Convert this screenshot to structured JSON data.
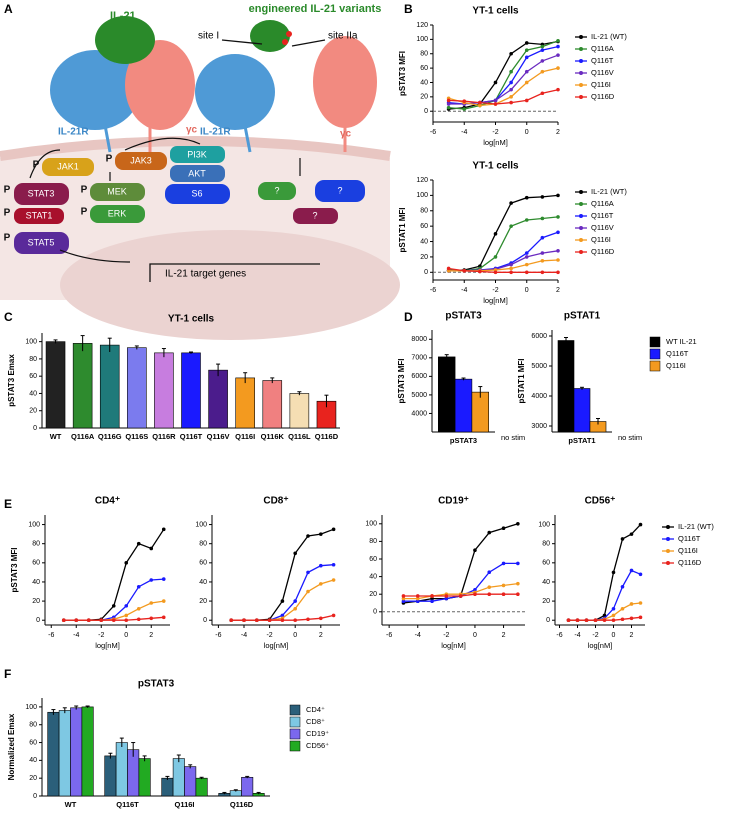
{
  "panel_labels": [
    "A",
    "B",
    "C",
    "D",
    "E",
    "F"
  ],
  "diagram": {
    "ligand": "IL-21",
    "variants": "engineered IL-21 variants",
    "site_1": "site I",
    "site_2": "site IIa",
    "receptor": [
      "IL-21R",
      "IL-21R"
    ],
    "gamma_c": [
      "γc",
      "γc"
    ],
    "kinases": [
      "JAK1",
      "JAK3",
      "PI3K",
      "AKT",
      "S6"
    ],
    "stats": [
      "STAT3",
      "STAT1",
      "STAT5"
    ],
    "mapk": [
      "MEK",
      "ERK"
    ],
    "unknown": [
      "?",
      "?",
      "?"
    ],
    "phospho": [
      "P",
      "P",
      "P",
      "P",
      "P",
      "P",
      "P"
    ],
    "target": "IL-21 target genes"
  },
  "chart_data": [
    {
      "type": "line",
      "title": "YT-1 cells",
      "y_label": "pSTAT3 MFI",
      "x_label": "log[nM]",
      "x": [
        -5,
        -4,
        -3,
        -2,
        -1,
        0,
        1,
        2
      ],
      "xlim": [
        -6,
        2
      ],
      "xticks": [
        -6,
        -4,
        -2,
        0,
        2
      ],
      "ylim": [
        -15,
        120
      ],
      "yticks": [
        0,
        20,
        40,
        60,
        80,
        100,
        120
      ],
      "zero_line": true,
      "legend": "right",
      "series": [
        {
          "name": "IL-21 (WT)",
          "color": "#000000",
          "values": [
            3,
            5,
            10,
            40,
            80,
            95,
            93,
            97
          ]
        },
        {
          "name": "Q116A",
          "color": "#2e8b2e",
          "values": [
            5,
            3,
            8,
            15,
            55,
            85,
            90,
            98
          ]
        },
        {
          "name": "Q116T",
          "color": "#1a1aff",
          "values": [
            12,
            10,
            12,
            15,
            40,
            75,
            85,
            90
          ]
        },
        {
          "name": "Q116V",
          "color": "#6a2bc0",
          "values": [
            10,
            10,
            12,
            15,
            30,
            55,
            70,
            78
          ]
        },
        {
          "name": "Q116I",
          "color": "#f39a1f",
          "values": [
            18,
            12,
            8,
            10,
            20,
            40,
            55,
            60
          ]
        },
        {
          "name": "Q116D",
          "color": "#e8231e",
          "values": [
            15,
            14,
            12,
            10,
            12,
            15,
            25,
            30
          ]
        }
      ]
    },
    {
      "type": "line",
      "title": "YT-1 cells",
      "y_label": "pSTAT1 MFI",
      "x_label": "log[nM]",
      "x": [
        -5,
        -4,
        -3,
        -2,
        -1,
        0,
        1,
        2
      ],
      "xlim": [
        -6,
        2
      ],
      "xticks": [
        -6,
        -4,
        -2,
        0,
        2
      ],
      "ylim": [
        -10,
        120
      ],
      "yticks": [
        0,
        20,
        40,
        60,
        80,
        100,
        120
      ],
      "zero_line": true,
      "legend": "right",
      "series": [
        {
          "name": "IL-21 (WT)",
          "color": "#000000",
          "values": [
            2,
            3,
            8,
            50,
            90,
            97,
            98,
            100
          ]
        },
        {
          "name": "Q116A",
          "color": "#2e8b2e",
          "values": [
            3,
            2,
            5,
            20,
            60,
            68,
            70,
            72
          ]
        },
        {
          "name": "Q116T",
          "color": "#1a1aff",
          "values": [
            2,
            2,
            3,
            5,
            12,
            25,
            45,
            52
          ]
        },
        {
          "name": "Q116V",
          "color": "#6a2bc0",
          "values": [
            2,
            2,
            3,
            4,
            10,
            20,
            25,
            28
          ]
        },
        {
          "name": "Q116I",
          "color": "#f39a1f",
          "values": [
            2,
            2,
            2,
            3,
            5,
            10,
            15,
            16
          ]
        },
        {
          "name": "Q116D",
          "color": "#e8231e",
          "values": [
            5,
            2,
            1,
            0,
            0,
            0,
            0,
            0
          ]
        }
      ]
    },
    {
      "type": "bar",
      "title": "YT-1 cells",
      "y_label": "pSTAT3 Emax",
      "categories": [
        "WT",
        "Q116A",
        "Q116G",
        "Q116S",
        "Q116R",
        "Q116T",
        "Q116V",
        "Q116I",
        "Q116K",
        "Q116L",
        "Q116D"
      ],
      "values": [
        100,
        98,
        96,
        93,
        87,
        87,
        67,
        58,
        55,
        40,
        31
      ],
      "errors": [
        2,
        9,
        8,
        2,
        5,
        1,
        7,
        6,
        3,
        2,
        7
      ],
      "colors": [
        "#222222",
        "#2e8b2e",
        "#1f7a7a",
        "#7b7bee",
        "#c77ddf",
        "#1a1aff",
        "#4b1c8c",
        "#f39a1f",
        "#f08080",
        "#f5deb3",
        "#e8231e"
      ],
      "ylim": [
        0,
        110
      ],
      "yticks": [
        0,
        20,
        40,
        60,
        80,
        100
      ]
    },
    {
      "type": "bar",
      "title": "pSTAT3",
      "y_label": "pSTAT3 MFI",
      "annotation": "no stim",
      "categories": [
        "pSTAT3"
      ],
      "ylim": [
        3000,
        8500
      ],
      "yticks": [
        4000,
        5000,
        6000,
        7000,
        8000
      ],
      "series": [
        {
          "color": "#000000",
          "values": [
            7050
          ],
          "errors": [
            120
          ]
        },
        {
          "color": "#1a1aff",
          "values": [
            5850
          ],
          "errors": [
            60
          ]
        },
        {
          "color": "#f39a1f",
          "values": [
            5150
          ],
          "errors": [
            300
          ]
        }
      ]
    },
    {
      "type": "bar",
      "title": "pSTAT1",
      "y_label": "pSTAT1 MFI",
      "annotation": "no stim",
      "legend": "right",
      "categories": [
        "pSTAT1"
      ],
      "ylim": [
        2800,
        6200
      ],
      "yticks": [
        3000,
        4000,
        5000,
        6000
      ],
      "series": [
        {
          "name": "WT IL-21",
          "color": "#000000",
          "values": [
            5850
          ],
          "errors": [
            100
          ]
        },
        {
          "name": "Q116T",
          "color": "#1a1aff",
          "values": [
            4250
          ],
          "errors": [
            40
          ]
        },
        {
          "name": "Q116I",
          "color": "#f39a1f",
          "values": [
            3150
          ],
          "errors": [
            100
          ]
        }
      ]
    },
    {
      "type": "line",
      "title": "CD4⁺",
      "y_label": "pSTAT3 MFI",
      "x_label": "log[nM]",
      "x": [
        -5,
        -4,
        -3,
        -2,
        -1,
        0,
        1,
        2,
        3
      ],
      "xlim": [
        -6.5,
        3.5
      ],
      "xticks": [
        -6,
        -4,
        -2,
        0,
        2
      ],
      "ylim": [
        -5,
        110
      ],
      "yticks": [
        0,
        20,
        40,
        60,
        80,
        100
      ],
      "series": [
        {
          "color": "#000000",
          "values": [
            0,
            0,
            0,
            1,
            15,
            60,
            80,
            75,
            95
          ]
        },
        {
          "color": "#1a1aff",
          "values": [
            0,
            0,
            0,
            0,
            3,
            15,
            35,
            42,
            43
          ]
        },
        {
          "color": "#f39a1f",
          "values": [
            0,
            0,
            0,
            0,
            1,
            5,
            12,
            18,
            20
          ]
        },
        {
          "color": "#e8231e",
          "values": [
            0,
            0,
            0,
            0,
            0,
            0,
            1,
            2,
            3
          ]
        }
      ]
    },
    {
      "type": "line",
      "title": "CD8⁺",
      "x_label": "log[nM]",
      "x": [
        -5,
        -4,
        -3,
        -2,
        -1,
        0,
        1,
        2,
        3
      ],
      "xlim": [
        -6.5,
        3.5
      ],
      "xticks": [
        -6,
        -4,
        -2,
        0,
        2
      ],
      "ylim": [
        -5,
        110
      ],
      "yticks": [
        0,
        20,
        40,
        60,
        80,
        100
      ],
      "series": [
        {
          "color": "#000000",
          "values": [
            0,
            0,
            0,
            1,
            20,
            70,
            88,
            90,
            95
          ]
        },
        {
          "color": "#1a1aff",
          "values": [
            0,
            0,
            0,
            0,
            5,
            20,
            50,
            57,
            58
          ]
        },
        {
          "color": "#f39a1f",
          "values": [
            0,
            0,
            0,
            0,
            2,
            12,
            30,
            38,
            42
          ]
        },
        {
          "color": "#e8231e",
          "values": [
            0,
            0,
            0,
            0,
            0,
            0,
            1,
            2,
            5
          ]
        }
      ]
    },
    {
      "type": "line",
      "title": "CD19⁺",
      "x_label": "log[nM]",
      "x": [
        -5,
        -4,
        -3,
        -2,
        -1,
        0,
        1,
        2,
        3
      ],
      "xlim": [
        -6.5,
        3.5
      ],
      "xticks": [
        -6,
        -4,
        -2,
        0,
        2
      ],
      "ylim": [
        -15,
        110
      ],
      "yticks": [
        0,
        20,
        40,
        60,
        80,
        100
      ],
      "zero_line": true,
      "series": [
        {
          "color": "#000000",
          "values": [
            10,
            12,
            15,
            15,
            18,
            70,
            90,
            95,
            100
          ]
        },
        {
          "color": "#1a1aff",
          "values": [
            12,
            12,
            12,
            15,
            18,
            25,
            45,
            55,
            55
          ]
        },
        {
          "color": "#f39a1f",
          "values": [
            15,
            15,
            18,
            20,
            20,
            22,
            28,
            30,
            32
          ]
        },
        {
          "color": "#e8231e",
          "values": [
            18,
            18,
            18,
            18,
            18,
            20,
            20,
            20,
            20
          ]
        }
      ]
    },
    {
      "type": "line",
      "title": "CD56⁺",
      "x_label": "log[nM]",
      "legend": "right",
      "x": [
        -5,
        -4,
        -3,
        -2,
        -1,
        0,
        1,
        2,
        3
      ],
      "xlim": [
        -6.5,
        3.5
      ],
      "xticks": [
        -6,
        -4,
        -2,
        0,
        2
      ],
      "ylim": [
        -5,
        110
      ],
      "yticks": [
        0,
        20,
        40,
        60,
        80,
        100
      ],
      "series": [
        {
          "name": "IL-21 (WT)",
          "color": "#000000",
          "values": [
            0,
            0,
            0,
            0,
            5,
            50,
            85,
            90,
            100
          ]
        },
        {
          "name": "Q116T",
          "color": "#1a1aff",
          "values": [
            0,
            0,
            0,
            0,
            2,
            12,
            35,
            52,
            48
          ]
        },
        {
          "name": "Q116I",
          "color": "#f39a1f",
          "values": [
            0,
            0,
            0,
            0,
            1,
            5,
            12,
            17,
            18
          ]
        },
        {
          "name": "Q116D",
          "color": "#e8231e",
          "values": [
            0,
            0,
            0,
            0,
            0,
            0,
            1,
            2,
            3
          ]
        }
      ]
    },
    {
      "type": "bar",
      "title": "pSTAT3",
      "y_label": "Normalized Emax",
      "legend": "right",
      "categories": [
        "WT",
        "Q116T",
        "Q116I",
        "Q116D"
      ],
      "ylim": [
        0,
        110
      ],
      "yticks": [
        0,
        20,
        40,
        60,
        80,
        100
      ],
      "series": [
        {
          "name": "CD4⁺",
          "color": "#2b5f7a",
          "values": [
            94,
            45,
            20,
            3
          ],
          "errors": [
            3,
            3,
            2,
            1
          ]
        },
        {
          "name": "CD8⁺",
          "color": "#7ec8e3",
          "values": [
            96,
            60,
            42,
            6
          ],
          "errors": [
            3,
            5,
            4,
            1
          ]
        },
        {
          "name": "CD19⁺",
          "color": "#7b68ee",
          "values": [
            99,
            52,
            33,
            21
          ],
          "errors": [
            2,
            8,
            2,
            1
          ]
        },
        {
          "name": "CD56⁺",
          "color": "#22aa22",
          "values": [
            100,
            42,
            20,
            3
          ],
          "errors": [
            1,
            3,
            1,
            1
          ]
        }
      ]
    }
  ]
}
